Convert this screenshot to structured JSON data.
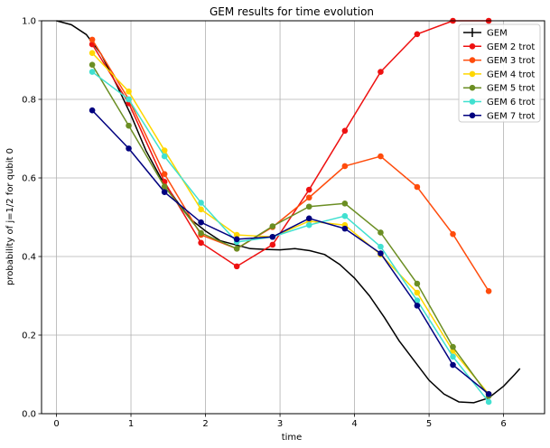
{
  "chart_data": {
    "type": "line",
    "title": "GEM results for time evolution",
    "xlabel": "time",
    "ylabel": "probability of j=1/2 for qubit 0",
    "xlim": [
      -0.2,
      6.55
    ],
    "ylim": [
      0,
      1.0
    ],
    "xticks": [
      0,
      1,
      2,
      3,
      4,
      5,
      6
    ],
    "yticks": [
      0.0,
      0.2,
      0.4,
      0.6,
      0.8,
      1.0
    ],
    "xtick_labels": [
      "0",
      "1",
      "2",
      "3",
      "4",
      "5",
      "6"
    ],
    "ytick_labels": [
      "0.0",
      "0.2",
      "0.4",
      "0.6",
      "0.8",
      "1.0"
    ],
    "grid": true,
    "legend_position": "top-right",
    "exact": {
      "name": "GEM",
      "color": "#000000",
      "x": [
        0.0,
        0.2,
        0.4,
        0.6,
        0.8,
        1.0,
        1.2,
        1.4,
        1.6,
        1.8,
        2.0,
        2.2,
        2.4,
        2.6,
        2.8,
        3.0,
        3.2,
        3.4,
        3.6,
        3.8,
        4.0,
        4.2,
        4.4,
        4.6,
        4.8,
        5.0,
        5.2,
        5.4,
        5.6,
        5.8,
        6.0,
        6.15,
        6.22
      ],
      "y": [
        1.0,
        0.99,
        0.965,
        0.915,
        0.84,
        0.76,
        0.67,
        0.6,
        0.545,
        0.495,
        0.465,
        0.44,
        0.43,
        0.42,
        0.418,
        0.417,
        0.42,
        0.415,
        0.405,
        0.38,
        0.345,
        0.3,
        0.245,
        0.185,
        0.135,
        0.085,
        0.05,
        0.03,
        0.028,
        0.04,
        0.07,
        0.1,
        0.115
      ]
    },
    "x": [
      0.48,
      0.97,
      1.45,
      1.94,
      2.42,
      2.9,
      3.39,
      3.87,
      4.35,
      4.84,
      5.32,
      5.8
    ],
    "series": [
      {
        "name": "GEM 2 trot",
        "color": "#ee1111",
        "values": [
          0.94,
          0.79,
          0.59,
          0.435,
          0.375,
          0.43,
          0.57,
          0.72,
          0.87,
          0.966,
          1.0,
          1.0
        ]
      },
      {
        "name": "GEM 3 trot",
        "color": "#ff4c0c",
        "values": [
          0.952,
          0.8,
          0.61,
          0.455,
          0.42,
          0.475,
          0.55,
          0.63,
          0.655,
          0.577,
          0.457,
          0.312
        ]
      },
      {
        "name": "GEM 4 trot",
        "color": "#ffd700",
        "values": [
          0.918,
          0.82,
          0.67,
          0.52,
          0.455,
          0.45,
          0.49,
          0.48,
          0.405,
          0.308,
          0.16,
          0.05
        ]
      },
      {
        "name": "GEM 5 trot",
        "color": "#6b8e23",
        "values": [
          0.888,
          0.733,
          0.578,
          0.46,
          0.42,
          0.477,
          0.527,
          0.535,
          0.461,
          0.331,
          0.17,
          0.045
        ]
      },
      {
        "name": "GEM 6 trot",
        "color": "#40e0d0",
        "values": [
          0.87,
          0.8,
          0.655,
          0.537,
          0.437,
          0.45,
          0.48,
          0.503,
          0.425,
          0.288,
          0.145,
          0.03
        ]
      },
      {
        "name": "GEM 7 trot",
        "color": "#00007f",
        "values": [
          0.772,
          0.675,
          0.564,
          0.487,
          0.444,
          0.45,
          0.497,
          0.471,
          0.408,
          0.275,
          0.124,
          0.05
        ]
      }
    ]
  }
}
